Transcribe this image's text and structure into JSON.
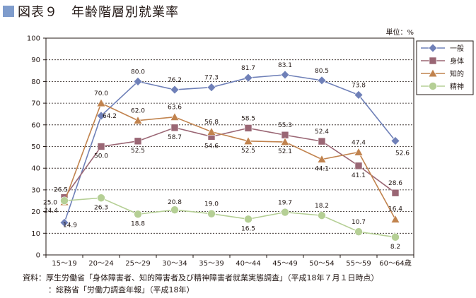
{
  "figure": {
    "title": "図表９　年齢階層別就業率",
    "unit": "単位：%"
  },
  "source": {
    "line1": "資料：厚生労働省「身体障害者、知的障害者及び精神障害者就業実態調査」（平成18年７月１日時点）",
    "line2": "：総務省「労働力調査年報」（平成18年）"
  },
  "chart_data": {
    "type": "line",
    "title": "図表９　年齢階層別就業率",
    "xlabel": "",
    "ylabel": "",
    "ylim": [
      0,
      100
    ],
    "yticks": [
      0,
      10,
      20,
      30,
      40,
      50,
      60,
      70,
      80,
      90,
      100
    ],
    "grid": true,
    "legend_position": "top-right",
    "categories": [
      "15～19",
      "20～24",
      "25～29",
      "30～34",
      "35～39",
      "40～44",
      "45～49",
      "50～54",
      "55～59",
      "60～64歳"
    ],
    "series": [
      {
        "name": "一般",
        "color": "#6f80b8",
        "marker": "diamond",
        "values": [
          14.9,
          64.2,
          80.0,
          76.2,
          77.3,
          81.7,
          83.1,
          80.5,
          73.8,
          52.6
        ],
        "labels": [
          "14.9",
          "64.2",
          "80.0",
          "76.2",
          "77.3",
          "81.7",
          "83.1",
          "80.5",
          "73.8",
          "52.6"
        ]
      },
      {
        "name": "身体",
        "color": "#9a6674",
        "marker": "square",
        "values": [
          26.5,
          50.0,
          52.5,
          58.7,
          54.6,
          58.5,
          55.3,
          52.4,
          41.1,
          28.6
        ],
        "labels": [
          "26.5",
          "50.0",
          "52.5",
          "58.7",
          "54.6",
          "58.5",
          "55.3",
          "52.4",
          "41.1",
          "28.6"
        ]
      },
      {
        "name": "知的",
        "color": "#c1834e",
        "marker": "triangle",
        "values": [
          24.4,
          70.0,
          62.0,
          63.6,
          56.8,
          52.5,
          52.1,
          44.1,
          47.4,
          16.4
        ],
        "labels": [
          "24.4",
          "70.0",
          "62.0",
          "63.6",
          "56.8",
          "52.5",
          "52.1",
          "44.1",
          "47.4",
          "16.4"
        ]
      },
      {
        "name": "精神",
        "color": "#b5cf95",
        "marker": "circle",
        "values": [
          25.0,
          26.3,
          18.8,
          20.8,
          19.0,
          16.5,
          19.7,
          18.2,
          10.7,
          8.2
        ],
        "labels": [
          "25.0",
          "26.3",
          "18.8",
          "20.8",
          "19.0",
          "16.5",
          "19.7",
          "18.2",
          "10.7",
          "8.2"
        ]
      }
    ]
  }
}
